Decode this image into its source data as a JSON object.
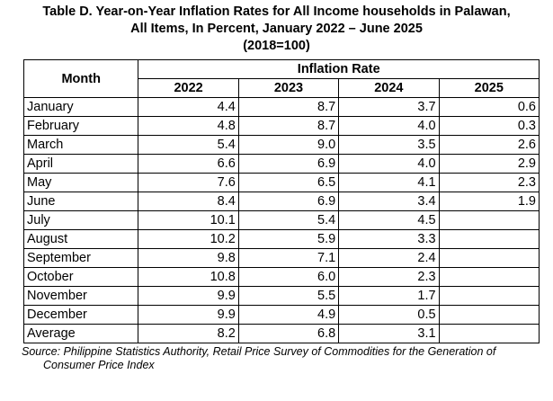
{
  "title_lines": [
    "Table D. Year-on-Year Inflation Rates for All Income households in Palawan,",
    "All Items, In Percent, January 2022 – June 2025",
    "(2018=100)"
  ],
  "table": {
    "month_header": "Month",
    "group_header": "Inflation Rate",
    "years": [
      "2022",
      "2023",
      "2024",
      "2025"
    ],
    "rows": [
      {
        "month": "January",
        "values": [
          "4.4",
          "8.7",
          "3.7",
          "0.6"
        ]
      },
      {
        "month": "February",
        "values": [
          "4.8",
          "8.7",
          "4.0",
          "0.3"
        ]
      },
      {
        "month": "March",
        "values": [
          "5.4",
          "9.0",
          "3.5",
          "2.6"
        ]
      },
      {
        "month": "April",
        "values": [
          "6.6",
          "6.9",
          "4.0",
          "2.9"
        ]
      },
      {
        "month": "May",
        "values": [
          "7.6",
          "6.5",
          "4.1",
          "2.3"
        ]
      },
      {
        "month": "June",
        "values": [
          "8.4",
          "6.9",
          "3.4",
          "1.9"
        ]
      },
      {
        "month": "July",
        "values": [
          "10.1",
          "5.4",
          "4.5",
          ""
        ]
      },
      {
        "month": "August",
        "values": [
          "10.2",
          "5.9",
          "3.3",
          ""
        ]
      },
      {
        "month": "September",
        "values": [
          "9.8",
          "7.1",
          "2.4",
          ""
        ]
      },
      {
        "month": "October",
        "values": [
          "10.8",
          "6.0",
          "2.3",
          ""
        ]
      },
      {
        "month": "November",
        "values": [
          "9.9",
          "5.5",
          "1.7",
          ""
        ]
      },
      {
        "month": "December",
        "values": [
          "9.9",
          "4.9",
          "0.5",
          ""
        ]
      },
      {
        "month": "Average",
        "values": [
          "8.2",
          "6.8",
          "3.1",
          ""
        ]
      }
    ]
  },
  "source": {
    "line1": "Source: Philippine Statistics Authority, Retail Price Survey of Commodities for the Generation of",
    "line2": "Consumer Price Index"
  }
}
